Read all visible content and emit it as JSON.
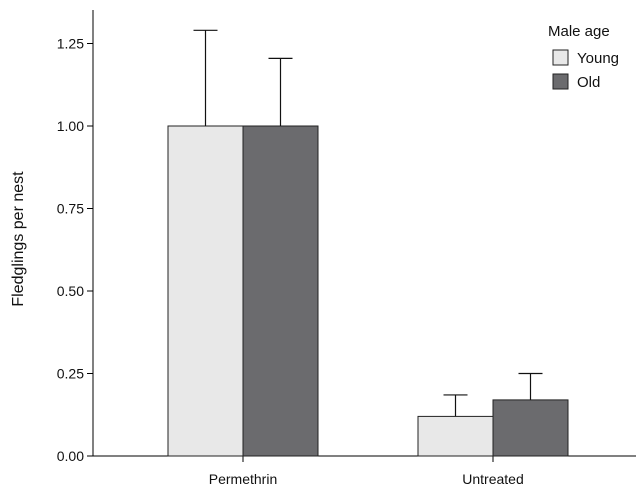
{
  "chart_data": {
    "type": "bar",
    "title": "",
    "xlabel": "",
    "ylabel": "Fledglings per nest",
    "categories": [
      "Permethrin",
      "Untreated"
    ],
    "ylim": [
      0,
      1.35
    ],
    "yticks": [
      "0.00",
      "0.25",
      "0.50",
      "0.75",
      "1.00",
      "1.25"
    ],
    "ytick_values": [
      0,
      0.25,
      0.5,
      0.75,
      1.0,
      1.25
    ],
    "grid": false,
    "legend": {
      "title": "Male age",
      "placement": "top-right"
    },
    "series": [
      {
        "name": "Young",
        "color": "#e8e8e8",
        "values": [
          1.0,
          0.12
        ],
        "errors": [
          0.29,
          0.065
        ]
      },
      {
        "name": "Old",
        "color": "#6b6b6e",
        "values": [
          1.0,
          0.17
        ],
        "errors": [
          0.205,
          0.08
        ]
      }
    ]
  }
}
